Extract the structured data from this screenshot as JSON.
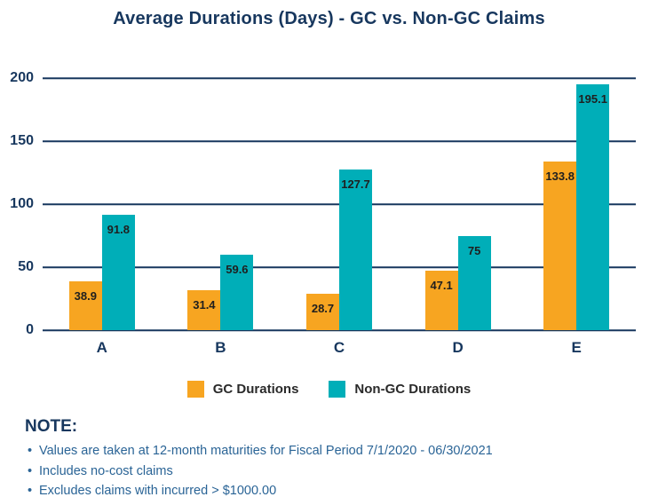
{
  "title": "Average Durations (Days) - GC vs. Non-GC Claims",
  "chart_data": {
    "type": "bar",
    "categories": [
      "A",
      "B",
      "C",
      "D",
      "E"
    ],
    "series": [
      {
        "name": "GC Durations",
        "color": "#F7A521",
        "values": [
          38.9,
          31.4,
          28.7,
          47.1,
          133.8
        ]
      },
      {
        "name": "Non-GC Durations",
        "color": "#00AEB8",
        "values": [
          91.8,
          59.6,
          127.7,
          75,
          195.1
        ]
      }
    ],
    "y_ticks": [
      0,
      50,
      100,
      150,
      200
    ],
    "ylim": [
      0,
      200
    ],
    "grid": true,
    "legend_position": "bottom",
    "value_labels_shown": true
  },
  "note": {
    "heading": "NOTE:",
    "bullets": [
      "Values are taken at 12-month maturities for Fiscal Period 7/1/2020 - 06/30/2021",
      "Includes no-cost claims",
      "Excludes claims with incurred > $1000.00"
    ]
  },
  "colors": {
    "navy": "#17375E",
    "note_blue": "#2A6496",
    "gc_orange": "#F7A521",
    "non_gc_teal": "#00AEB8",
    "value_label": "#1F1F1F",
    "background": "#FFFFFF"
  }
}
